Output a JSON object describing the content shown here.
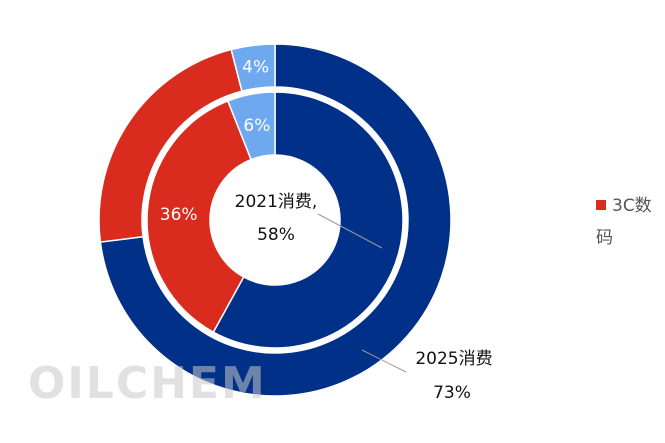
{
  "chart_data": {
    "type": "pie",
    "title": "",
    "series": [
      {
        "name": "2025",
        "ring": "outer",
        "slices": [
          {
            "category": "消费",
            "value": 73,
            "label": "",
            "color": "#003087"
          },
          {
            "category": "3C数码",
            "value": 23,
            "label": "",
            "color": "#d92b1e"
          },
          {
            "category": "",
            "value": 4,
            "label": "4%",
            "color": "#6ea9ef"
          }
        ]
      },
      {
        "name": "2021",
        "ring": "inner",
        "slices": [
          {
            "category": "消费",
            "value": 58,
            "label": "",
            "color": "#003087"
          },
          {
            "category": "3C数码",
            "value": 36,
            "label": "36%",
            "color": "#d92b1e"
          },
          {
            "category": "",
            "value": 6,
            "label": "6%",
            "color": "#6ea9ef"
          }
        ]
      }
    ],
    "callouts": {
      "inner": {
        "line1": "2021消费,",
        "line2": "58%"
      },
      "outer": {
        "line1": "2025消费",
        "line2": "73%"
      }
    },
    "legend": {
      "position": "right",
      "items": [
        {
          "label": "3C数码",
          "color": "#d92b1e"
        }
      ]
    }
  },
  "watermark": "OILCHEM"
}
